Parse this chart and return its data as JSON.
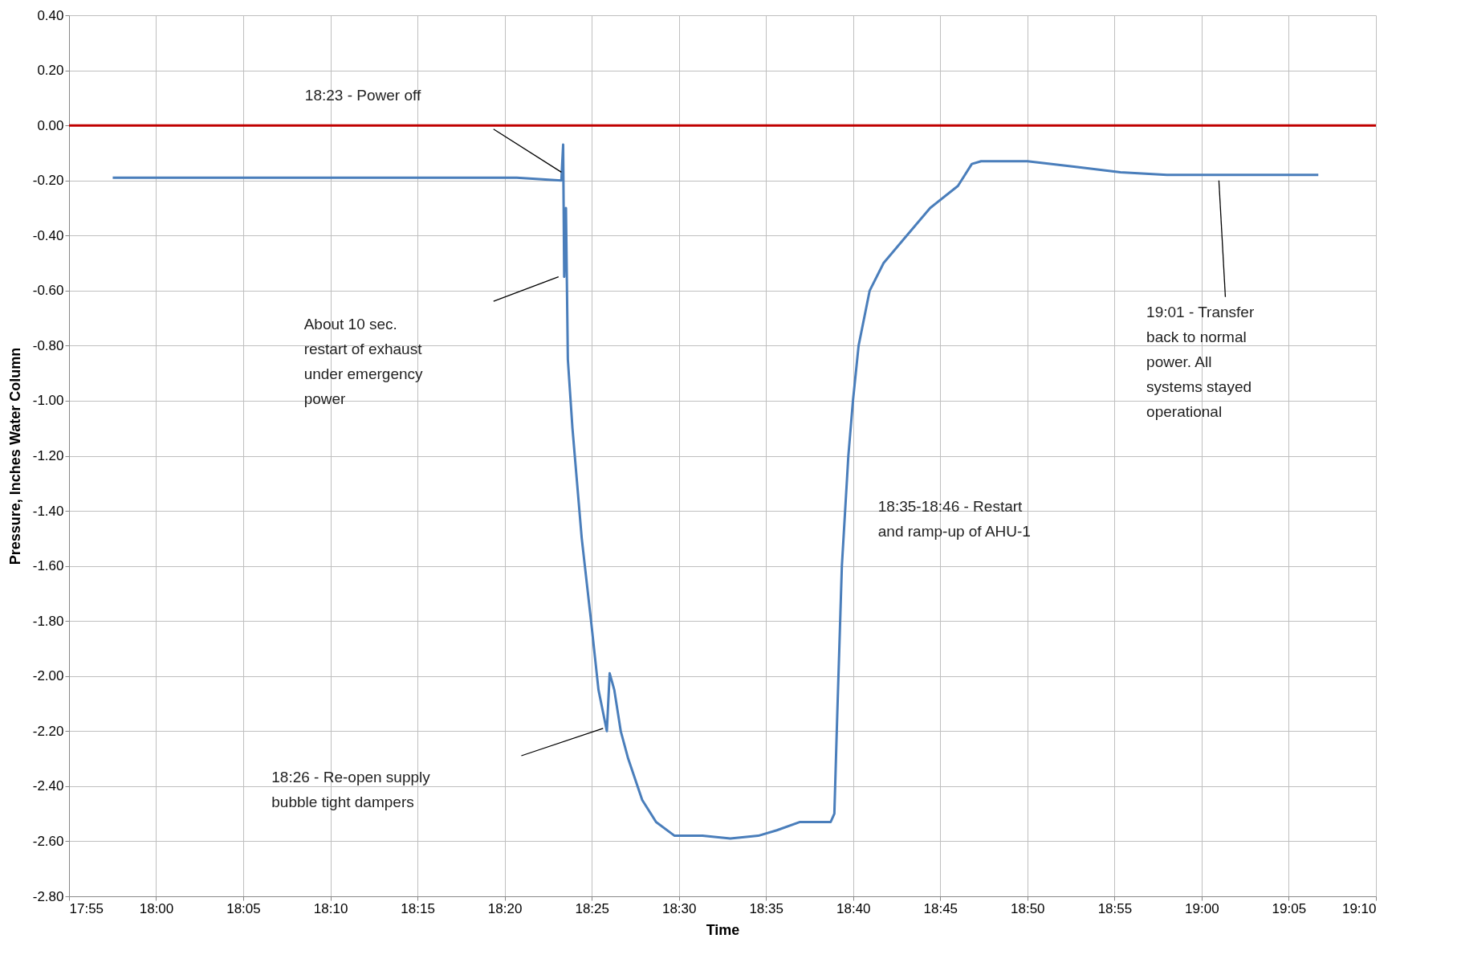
{
  "chart_data": {
    "type": "line",
    "xlabel": "Time",
    "ylabel": "Pressure, Inches Water Column",
    "x": [
      17.9585,
      18.0784,
      18.2117,
      18.3449,
      18.3876,
      18.3893,
      18.3903,
      18.392,
      18.3938,
      18.3982,
      18.4071,
      18.416,
      18.4231,
      18.4311,
      18.4338,
      18.4382,
      18.4444,
      18.4515,
      18.4649,
      18.4782,
      18.4959,
      18.5226,
      18.5492,
      18.5759,
      18.5937,
      18.6159,
      18.6452,
      18.6487,
      18.6514,
      18.6559,
      18.6621,
      18.6665,
      18.6719,
      18.6825,
      18.6958,
      18.718,
      18.7403,
      18.7669,
      18.7802,
      18.7891,
      18.8335,
      18.878,
      18.9224,
      18.9668,
      19.0112,
      19.0557,
      19.1116
    ],
    "series": [
      {
        "color": "#4a7ebb",
        "values": [
          -0.19,
          -0.19,
          -0.19,
          -0.19,
          -0.2,
          -0.07,
          -0.55,
          -0.3,
          -0.85,
          -1.1,
          -1.5,
          -1.8,
          -2.05,
          -2.2,
          -1.99,
          -2.05,
          -2.2,
          -2.3,
          -2.45,
          -2.53,
          -2.58,
          -2.58,
          -2.59,
          -2.58,
          -2.56,
          -2.53,
          -2.53,
          -2.5,
          -2.15,
          -1.6,
          -1.2,
          -1.0,
          -0.8,
          -0.6,
          -0.5,
          -0.4,
          -0.3,
          -0.22,
          -0.14,
          -0.13,
          -0.13,
          -0.15,
          -0.17,
          -0.18,
          -0.18,
          -0.18,
          -0.18
        ]
      }
    ],
    "xlim": [
      17.9167,
      19.1667
    ],
    "xticks": [
      {
        "value": 17.9167,
        "label": "17:55"
      },
      {
        "value": 18,
        "label": "18:00"
      },
      {
        "value": 18.0833,
        "label": "18:05"
      },
      {
        "value": 18.1667,
        "label": "18:10"
      },
      {
        "value": 18.25,
        "label": "18:15"
      },
      {
        "value": 18.3333,
        "label": "18:20"
      },
      {
        "value": 18.4167,
        "label": "18:25"
      },
      {
        "value": 18.5,
        "label": "18:30"
      },
      {
        "value": 18.5833,
        "label": "18:35"
      },
      {
        "value": 18.6667,
        "label": "18:40"
      },
      {
        "value": 18.75,
        "label": "18:45"
      },
      {
        "value": 18.8333,
        "label": "18:50"
      },
      {
        "value": 18.9167,
        "label": "18:55"
      },
      {
        "value": 19,
        "label": "19:00"
      },
      {
        "value": 19.0833,
        "label": "19:05"
      },
      {
        "value": 19.1667,
        "label": "19:10"
      }
    ],
    "ylim": [
      -2.8,
      0.4
    ],
    "yticks": [
      {
        "value": -2.8,
        "label": "-2.80"
      },
      {
        "value": -2.6,
        "label": "-2.60"
      },
      {
        "value": -2.4,
        "label": "-2.40"
      },
      {
        "value": -2.2,
        "label": "-2.20"
      },
      {
        "value": -2,
        "label": "-2.00"
      },
      {
        "value": -1.8,
        "label": "-1.80"
      },
      {
        "value": -1.6,
        "label": "-1.60"
      },
      {
        "value": -1.4,
        "label": "-1.40"
      },
      {
        "value": -1.2,
        "label": "-1.20"
      },
      {
        "value": -1,
        "label": "-1.00"
      },
      {
        "value": -0.8,
        "label": "-0.80"
      },
      {
        "value": -0.6,
        "label": "-0.60"
      },
      {
        "value": -0.4,
        "label": "-0.40"
      },
      {
        "value": -0.2,
        "label": "-0.20"
      },
      {
        "value": 0,
        "label": "0.00"
      },
      {
        "value": 0.2,
        "label": "0.20"
      },
      {
        "value": 0.4,
        "label": "0.40"
      }
    ],
    "ref_lines": [
      {
        "axis": "y",
        "value": 0,
        "color": "#c00000"
      }
    ],
    "annotations": [
      "18:23 - Power off",
      "About 10 sec. restart of exhaust under emergency power",
      "18:26 - Re-open supply bubble tight dampers",
      "18:35-18:46 - Restart and ramp-up of AHU-1",
      "19:01 - Transfer back to normal power. All systems stayed operational"
    ],
    "grid": true,
    "marker": "none",
    "line_style": "solid"
  }
}
